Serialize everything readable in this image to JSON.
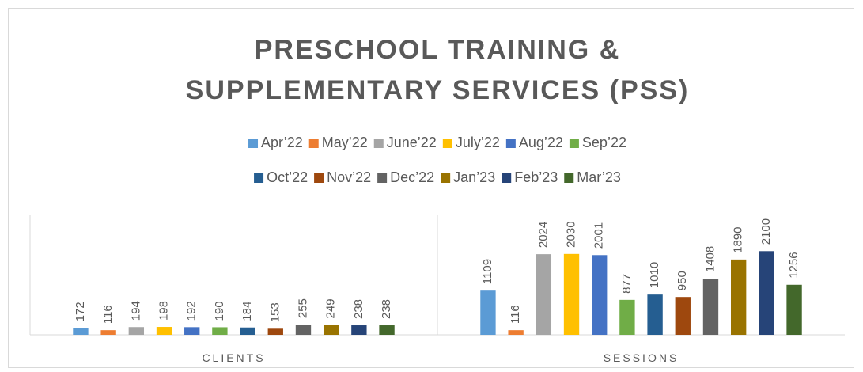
{
  "chart_data": {
    "type": "bar",
    "title": "PRESCHOOL TRAINING & SUPPLEMENTARY SERVICES (PSS)",
    "categories": [
      "CLIENTS",
      "SESSIONS"
    ],
    "ylim": [
      0,
      3000
    ],
    "series": [
      {
        "name": "Apr’22",
        "color": "#5b9bd5",
        "values": [
          172,
          1109
        ]
      },
      {
        "name": "May’22",
        "color": "#ed7d31",
        "values": [
          116,
          116
        ]
      },
      {
        "name": "June’22",
        "color": "#a5a5a5",
        "values": [
          194,
          2024
        ]
      },
      {
        "name": "July’22",
        "color": "#ffc000",
        "values": [
          198,
          2030
        ]
      },
      {
        "name": "Aug’22",
        "color": "#4472c4",
        "values": [
          192,
          2001
        ]
      },
      {
        "name": "Sep’22",
        "color": "#70ad47",
        "values": [
          190,
          877
        ]
      },
      {
        "name": "Oct’22",
        "color": "#255e91",
        "values": [
          184,
          1010
        ]
      },
      {
        "name": "Nov’22",
        "color": "#9e480e",
        "values": [
          153,
          950
        ]
      },
      {
        "name": "Dec’22",
        "color": "#636363",
        "values": [
          255,
          1408
        ]
      },
      {
        "name": "Jan’23",
        "color": "#997300",
        "values": [
          249,
          1890
        ]
      },
      {
        "name": "Feb’23",
        "color": "#264478",
        "values": [
          238,
          2100
        ]
      },
      {
        "name": "Mar’23",
        "color": "#43682b",
        "values": [
          238,
          1256
        ]
      }
    ]
  }
}
